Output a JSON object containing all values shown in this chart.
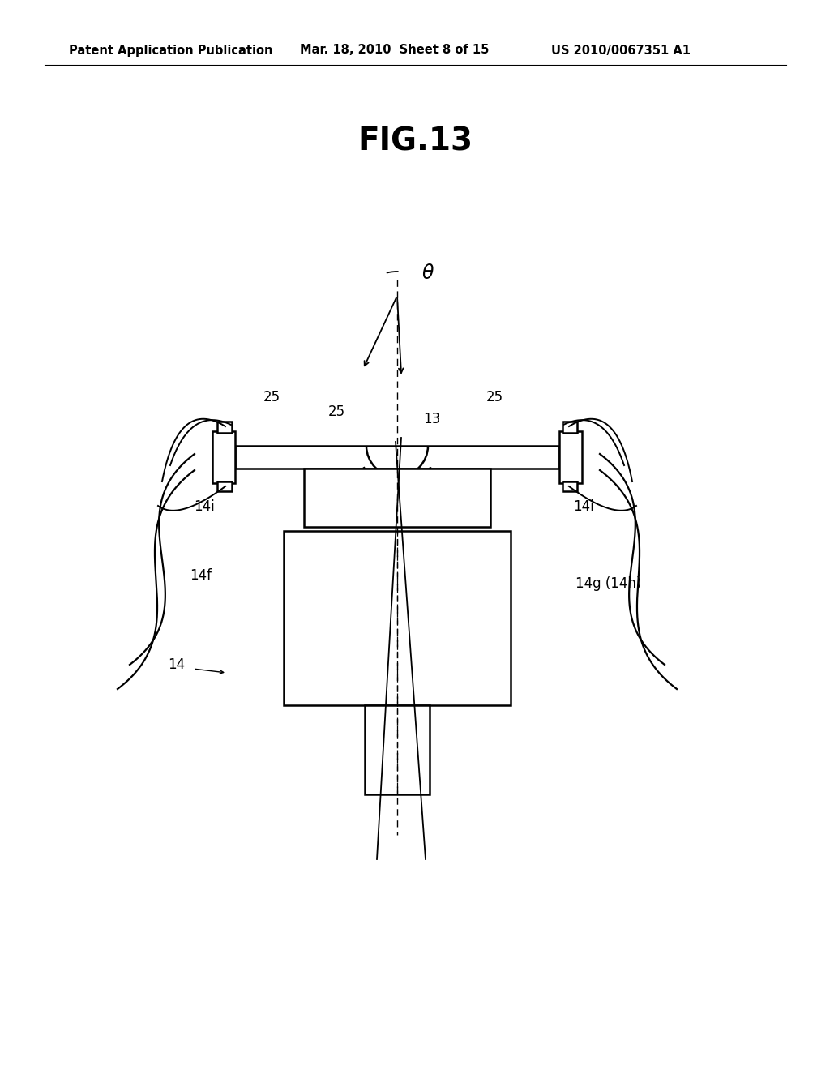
{
  "title": "FIG.13",
  "header_left": "Patent Application Publication",
  "header_mid": "Mar. 18, 2010  Sheet 8 of 15",
  "header_right": "US 2010/0067351 A1",
  "bg_color": "#ffffff",
  "line_color": "#000000",
  "fig_title_fontsize": 28,
  "header_fontsize": 10.5,
  "label_fontsize": 12
}
